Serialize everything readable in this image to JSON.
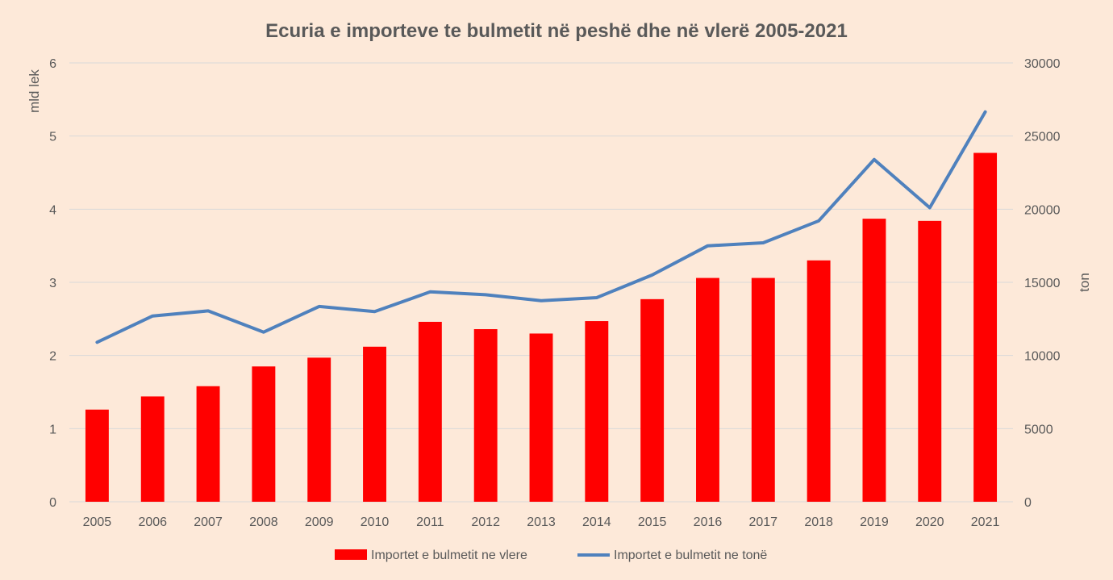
{
  "chart_data": {
    "type": "bar",
    "title": "Ecuria e importeve te bulmetit në peshë dhe në vlerë 2005-2021",
    "categories": [
      "2005",
      "2006",
      "2007",
      "2008",
      "2009",
      "2010",
      "2011",
      "2012",
      "2013",
      "2014",
      "2015",
      "2016",
      "2017",
      "2018",
      "2019",
      "2020",
      "2021"
    ],
    "y_left": {
      "label": "mld lek",
      "range": [
        0,
        6
      ],
      "ticks": [
        "0",
        "1",
        "2",
        "3",
        "4",
        "5",
        "6"
      ]
    },
    "y_right": {
      "label": "ton",
      "range": [
        0,
        30000
      ],
      "ticks": [
        "0",
        "5000",
        "10000",
        "15000",
        "20000",
        "25000",
        "30000"
      ]
    },
    "series": [
      {
        "name": "Importet e bulmetit ne vlere",
        "kind": "bar",
        "axis": "left",
        "color": "#ff0000",
        "values": [
          1.26,
          1.44,
          1.58,
          1.85,
          1.97,
          2.12,
          2.46,
          2.36,
          2.3,
          2.47,
          2.77,
          3.06,
          3.06,
          3.3,
          3.87,
          3.84,
          4.77
        ]
      },
      {
        "name": "Importet e bulmetit ne tonë",
        "kind": "line",
        "axis": "right",
        "color": "#4f81bd",
        "values": [
          10900,
          12700,
          13050,
          11600,
          13350,
          13000,
          14350,
          14150,
          13750,
          13950,
          15500,
          17500,
          17700,
          19200,
          23400,
          20100,
          26650
        ]
      }
    ],
    "grid": true,
    "legend_position": "bottom"
  }
}
